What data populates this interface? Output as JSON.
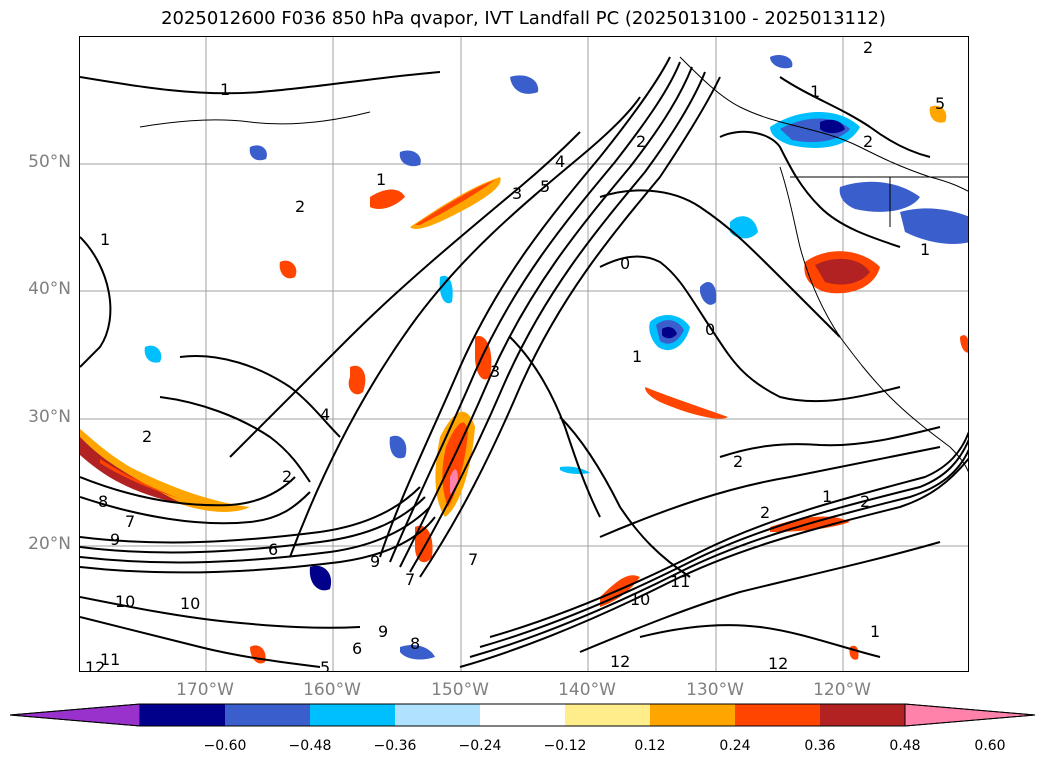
{
  "title": "2025012600 F036 850 hPa qvapor, IVT Landfall PC (2025013100 - 2025013112)",
  "latitude_labels": [
    "50°N",
    "40°N",
    "30°N",
    "20°N"
  ],
  "longitude_labels": [
    "170°W",
    "160°W",
    "150°W",
    "140°W",
    "130°W",
    "120°W"
  ],
  "colorbar": {
    "tick_labels": [
      "−0.60",
      "−0.48",
      "−0.36",
      "−0.24",
      "−0.12",
      "0.12",
      "0.24",
      "0.36",
      "0.48",
      "0.60"
    ],
    "colors": [
      "#9932cc",
      "#00008b",
      "#3a5fcd",
      "#00bfff",
      "#b0e2ff",
      "#ffffff",
      "#ffec8b",
      "#ffa500",
      "#ff4500",
      "#b22222",
      "#ff82ab"
    ]
  },
  "contour_labels": [
    "1",
    "1",
    "2",
    "2",
    "3",
    "4",
    "2",
    "1",
    "0",
    "0",
    "1",
    "1",
    "2",
    "4",
    "2",
    "2",
    "8",
    "9",
    "7",
    "6",
    "5",
    "3",
    "1",
    "7",
    "9",
    "7",
    "2",
    "1",
    "2",
    "5",
    "6",
    "8",
    "10",
    "10",
    "11",
    "11",
    "10",
    "12",
    "12",
    "12",
    "5",
    "9",
    "1",
    "2"
  ]
}
